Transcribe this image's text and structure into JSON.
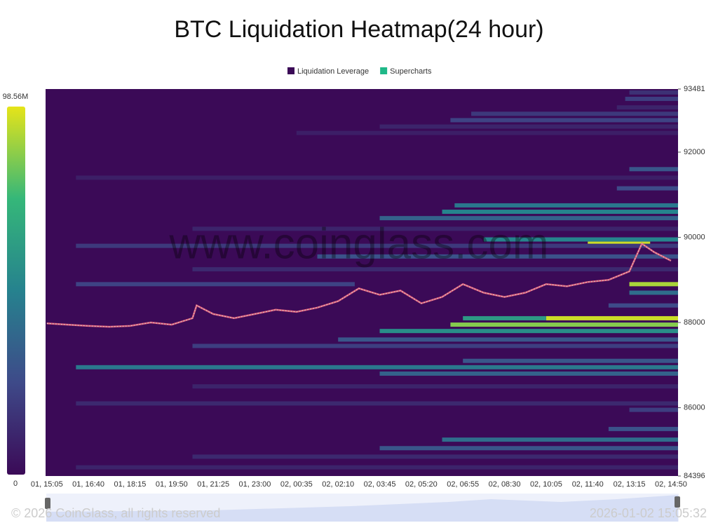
{
  "chart_data": {
    "type": "heatmap",
    "title": "BTC Liquidation Heatmap(24 hour)",
    "legend": [
      {
        "name": "Liquidation Leverage",
        "color": "#3b0a57"
      },
      {
        "name": "Supercharts",
        "color": "#1fb888"
      }
    ],
    "watermark": "www.coinglass.com",
    "colorbar": {
      "min": 0,
      "max": {
        "value": 98560000,
        "label": "98.56M"
      },
      "colormap": [
        "#3b0a57",
        "#3e4a89",
        "#26828e",
        "#35b779",
        "#e6e419"
      ]
    },
    "categories": [
      "01, 15:05",
      "01, 16:40",
      "01, 18:15",
      "01, 19:50",
      "01, 21:25",
      "01, 23:00",
      "02, 00:35",
      "02, 02:10",
      "02, 03:45",
      "02, 05:20",
      "02, 06:55",
      "02, 08:30",
      "02, 10:05",
      "02, 11:40",
      "02, 13:15",
      "02, 14:50"
    ],
    "xlim": [
      -0.03,
      15.17
    ],
    "ylim": [
      84396,
      93481
    ],
    "yticks": [
      84396,
      86000,
      88000,
      90000,
      92000,
      93481
    ],
    "bands": [
      {
        "price": 93400,
        "x": [
          14.0,
          15.17
        ],
        "value": 15000000
      },
      {
        "price": 93250,
        "x": [
          13.9,
          15.17
        ],
        "value": 20000000
      },
      {
        "price": 93050,
        "x": [
          13.7,
          15.17
        ],
        "value": 10000000
      },
      {
        "price": 92900,
        "x": [
          10.2,
          15.17
        ],
        "value": 18000000
      },
      {
        "price": 92750,
        "x": [
          9.7,
          15.17
        ],
        "value": 22000000
      },
      {
        "price": 92600,
        "x": [
          8.0,
          15.17
        ],
        "value": 10000000
      },
      {
        "price": 92450,
        "x": [
          6.0,
          15.17
        ],
        "value": 8000000
      },
      {
        "price": 91600,
        "x": [
          14.0,
          15.17
        ],
        "value": 30000000
      },
      {
        "price": 91400,
        "x": [
          0.7,
          15.17
        ],
        "value": 8000000
      },
      {
        "price": 91150,
        "x": [
          13.7,
          15.17
        ],
        "value": 25000000
      },
      {
        "price": 90750,
        "x": [
          9.8,
          15.17
        ],
        "value": 45000000
      },
      {
        "price": 90600,
        "x": [
          9.5,
          15.17
        ],
        "value": 50000000
      },
      {
        "price": 90450,
        "x": [
          8.0,
          15.17
        ],
        "value": 35000000
      },
      {
        "price": 90200,
        "x": [
          3.5,
          15.17
        ],
        "value": 10000000
      },
      {
        "price": 89950,
        "x": [
          10.5,
          15.17
        ],
        "value": 50000000
      },
      {
        "price": 89850,
        "x": [
          13.0,
          14.5
        ],
        "value": 95000000
      },
      {
        "price": 89800,
        "x": [
          0.7,
          15.17
        ],
        "value": 18000000
      },
      {
        "price": 89550,
        "x": [
          6.5,
          15.17
        ],
        "value": 28000000
      },
      {
        "price": 89250,
        "x": [
          3.5,
          15.17
        ],
        "value": 12000000
      },
      {
        "price": 88900,
        "x": [
          0.7,
          7.4
        ],
        "value": 22000000
      },
      {
        "price": 88900,
        "x": [
          14.0,
          15.17
        ],
        "value": 90000000
      },
      {
        "price": 88700,
        "x": [
          14.0,
          15.17
        ],
        "value": 40000000
      },
      {
        "price": 88400,
        "x": [
          13.5,
          15.17
        ],
        "value": 25000000
      },
      {
        "price": 88100,
        "x": [
          12.0,
          15.17
        ],
        "value": 95000000
      },
      {
        "price": 88100,
        "x": [
          10.0,
          12.0
        ],
        "value": 60000000
      },
      {
        "price": 87950,
        "x": [
          9.7,
          15.17
        ],
        "value": 85000000
      },
      {
        "price": 87800,
        "x": [
          8.0,
          15.17
        ],
        "value": 55000000
      },
      {
        "price": 87600,
        "x": [
          7.0,
          15.17
        ],
        "value": 30000000
      },
      {
        "price": 87450,
        "x": [
          3.5,
          15.17
        ],
        "value": 20000000
      },
      {
        "price": 87100,
        "x": [
          10.0,
          15.17
        ],
        "value": 30000000
      },
      {
        "price": 86950,
        "x": [
          0.7,
          15.17
        ],
        "value": 45000000
      },
      {
        "price": 86800,
        "x": [
          8.0,
          15.17
        ],
        "value": 35000000
      },
      {
        "price": 86500,
        "x": [
          3.5,
          15.17
        ],
        "value": 10000000
      },
      {
        "price": 86100,
        "x": [
          0.7,
          15.17
        ],
        "value": 12000000
      },
      {
        "price": 85950,
        "x": [
          14.0,
          15.17
        ],
        "value": 20000000
      },
      {
        "price": 85500,
        "x": [
          13.5,
          15.17
        ],
        "value": 28000000
      },
      {
        "price": 85250,
        "x": [
          9.5,
          15.17
        ],
        "value": 40000000
      },
      {
        "price": 85050,
        "x": [
          8.0,
          15.17
        ],
        "value": 30000000
      },
      {
        "price": 84850,
        "x": [
          3.5,
          15.17
        ],
        "value": 12000000
      },
      {
        "price": 84600,
        "x": [
          0.7,
          15.17
        ],
        "value": 10000000
      }
    ],
    "price": {
      "color": "#c8d8c8",
      "x": [
        0,
        0.5,
        1,
        1.5,
        2,
        2.5,
        3,
        3.5,
        3.6,
        4,
        4.5,
        5,
        5.5,
        6,
        6.5,
        7,
        7.5,
        8,
        8.5,
        9,
        9.5,
        10,
        10.5,
        11,
        11.5,
        12,
        12.5,
        13,
        13.5,
        14,
        14.3,
        14.6,
        15
      ],
      "values": [
        87980,
        87950,
        87920,
        87900,
        87920,
        88000,
        87950,
        88100,
        88400,
        88200,
        88100,
        88200,
        88300,
        88250,
        88350,
        88500,
        88800,
        88650,
        88750,
        88450,
        88600,
        88900,
        88700,
        88600,
        88700,
        88900,
        88850,
        88950,
        89000,
        89200,
        89850,
        89650,
        89450
      ]
    },
    "footer_left": "© 2026 CoinGlass, all rights reserved",
    "footer_right": "2026-01-02 15:05:32"
  }
}
